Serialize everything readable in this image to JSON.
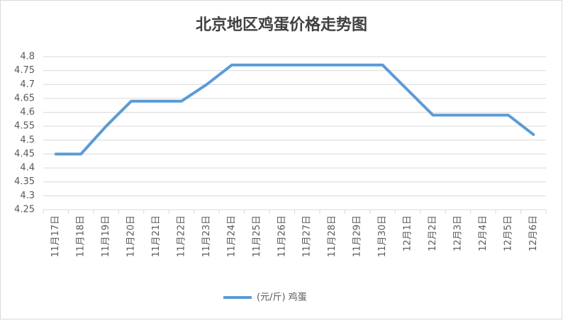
{
  "chart_data": {
    "type": "line",
    "title": "北京地区鸡蛋价格走势图",
    "categories": [
      "11月17日",
      "11月18日",
      "11月19日",
      "11月20日",
      "11月21日",
      "11月22日",
      "11月23日",
      "11月24日",
      "11月25日",
      "11月26日",
      "11月27日",
      "11月28日",
      "11月29日",
      "11月30日",
      "12月1日",
      "12月2日",
      "12月3日",
      "12月4日",
      "12月5日",
      "12月6日"
    ],
    "series": [
      {
        "name": "(元/斤) 鸡蛋",
        "color": "#5b9bd5",
        "values": [
          4.45,
          4.45,
          4.55,
          4.64,
          4.64,
          4.64,
          4.7,
          4.77,
          4.77,
          4.77,
          4.77,
          4.77,
          4.77,
          4.77,
          4.68,
          4.59,
          4.59,
          4.59,
          4.59,
          4.52
        ]
      }
    ],
    "ylim": [
      4.25,
      4.8
    ],
    "yticks": [
      4.25,
      4.3,
      4.35,
      4.4,
      4.45,
      4.5,
      4.55,
      4.6,
      4.65,
      4.7,
      4.75,
      4.8
    ],
    "grid": true,
    "legend": "bottom"
  }
}
